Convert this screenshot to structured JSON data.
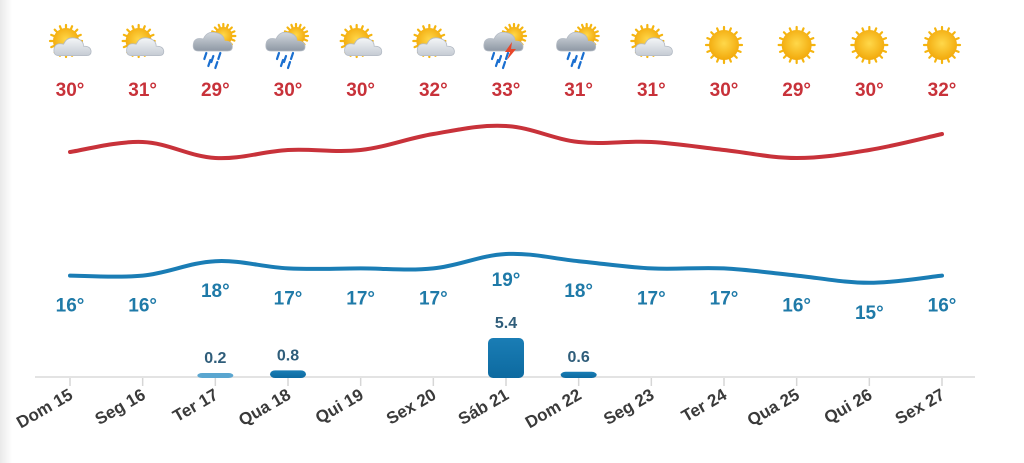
{
  "chart_data": {
    "type": "line",
    "categories": [
      "Dom 15",
      "Seg 16",
      "Ter 17",
      "Qua 18",
      "Qui 19",
      "Sex 20",
      "Sáb 21",
      "Dom 22",
      "Seg 23",
      "Ter 24",
      "Qua 25",
      "Qui 26",
      "Sex 27"
    ],
    "icons": [
      "partly-sunny-icon",
      "partly-sunny-icon",
      "sun-rain-cloud-icon",
      "sun-rain-cloud-icon",
      "partly-sunny-icon",
      "partly-sunny-icon",
      "thunderstorm-icon",
      "sun-rain-cloud-icon",
      "partly-sunny-icon",
      "sun-icon",
      "sun-icon",
      "sun-icon",
      "sun-icon"
    ],
    "max_labels": [
      "30°",
      "31°",
      "29°",
      "30°",
      "30°",
      "32°",
      "33°",
      "31°",
      "31°",
      "30°",
      "29°",
      "30°",
      "32°"
    ],
    "min_labels": [
      "16°",
      "16°",
      "18°",
      "17°",
      "17°",
      "17°",
      "19°",
      "18°",
      "17°",
      "17°",
      "16°",
      "15°",
      "16°"
    ],
    "series": [
      {
        "values": [
          30,
          31,
          29,
          30,
          30,
          32,
          33,
          31,
          31,
          30,
          29,
          30,
          32
        ],
        "color": "#c8323a"
      },
      {
        "values": [
          16,
          16,
          18,
          17,
          17,
          17,
          19,
          18,
          17,
          17,
          16,
          15,
          16
        ],
        "color": "#1a7db5"
      }
    ],
    "precipitation": [
      null,
      null,
      0.2,
      0.8,
      null,
      null,
      5.4,
      0.6,
      null,
      null,
      null,
      null,
      null
    ],
    "precipitation_labels": [
      "",
      "",
      "0.2",
      "0.8",
      "",
      "",
      "5.4",
      "0.6",
      "",
      "",
      "",
      "",
      ""
    ],
    "precip_color": "#1a7db5",
    "ylim": [
      14,
      34
    ],
    "grid": false
  },
  "colors": {
    "max": "#c8323a",
    "min": "#1a7db5",
    "sun": "#f5b50f",
    "cloud": "#c9ced6"
  }
}
